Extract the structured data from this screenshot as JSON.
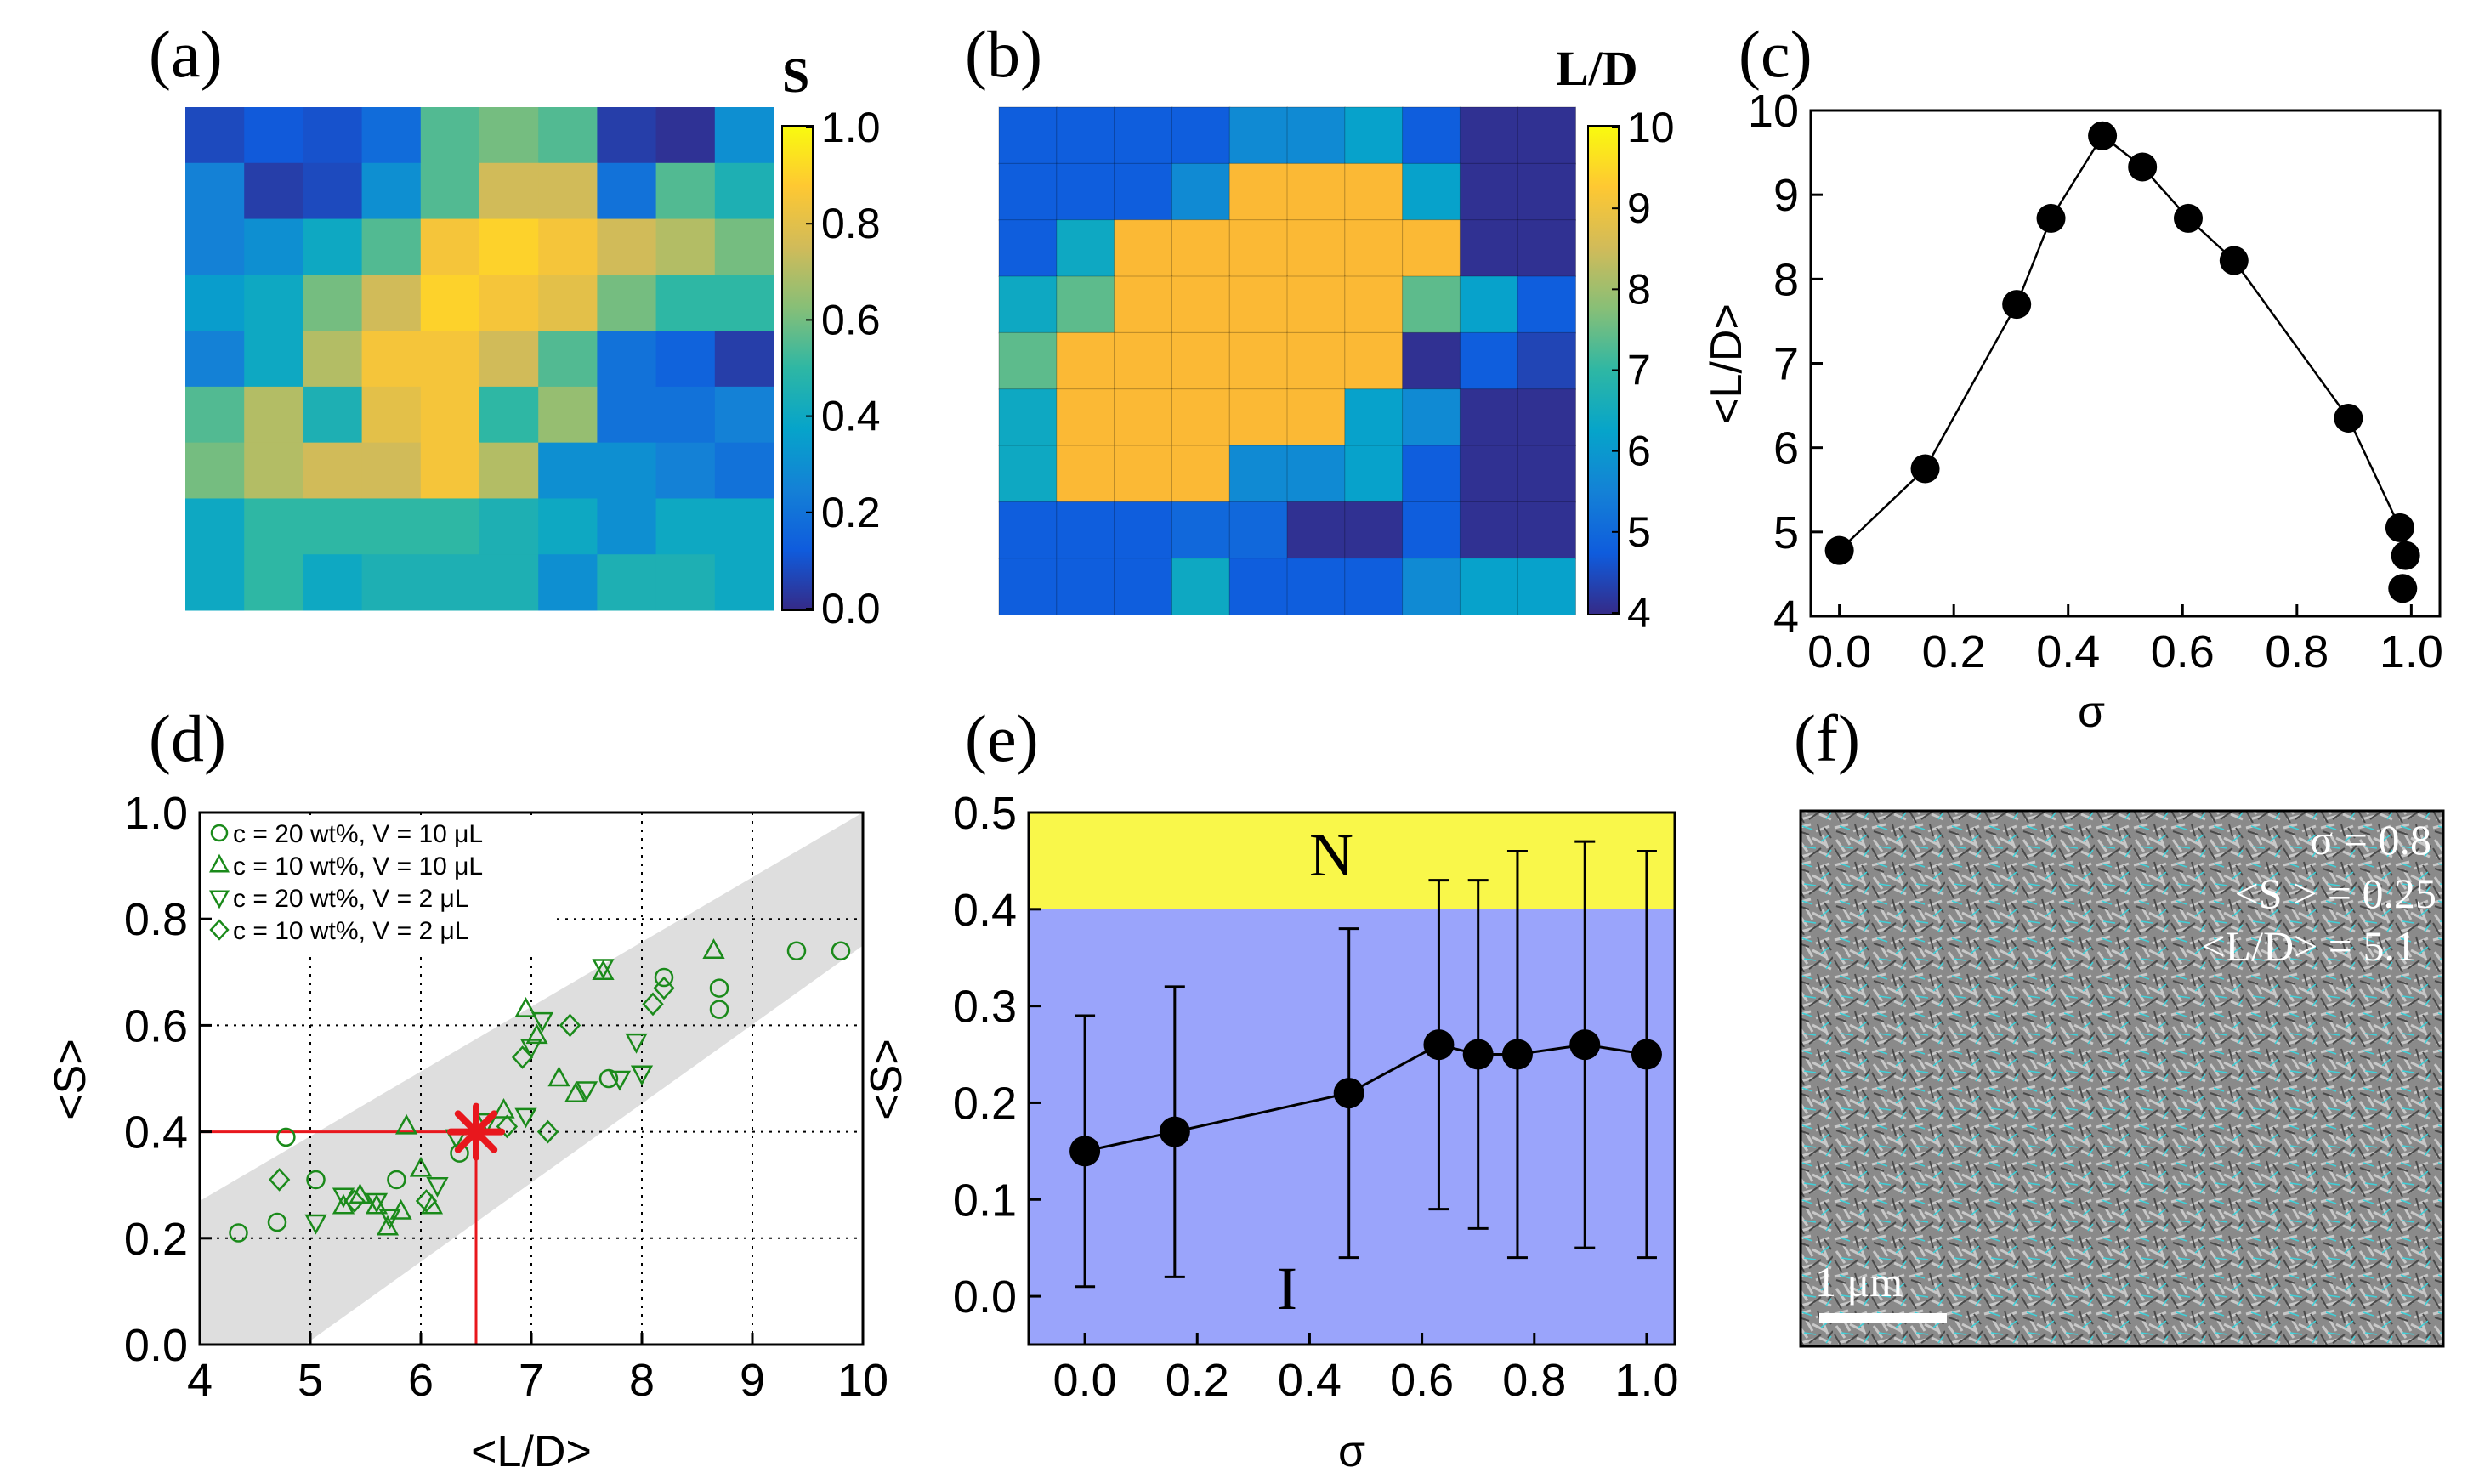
{
  "panel_labels": [
    "(a)",
    "(b)",
    "(c)",
    "(d)",
    "(e)",
    "(f)"
  ],
  "colors": {
    "parula_stops": [
      "#352a87",
      "#0f5cdd",
      "#1481d6",
      "#06a4ca",
      "#2eb7a4",
      "#87bf77",
      "#d1bb59",
      "#fec832",
      "#f9fb0e"
    ],
    "orange_cell": "#fbb935",
    "panel_d_marker": "#1a8a1a",
    "panel_d_band": "#dedede",
    "highlight_red": "#e8171d",
    "panel_e_nematic": "#f9f74a",
    "panel_e_isotropic": "#9aa4fb"
  },
  "chart_data": [
    {
      "panel": "a",
      "type": "heatmap",
      "colorbar_label": "S",
      "colorbar_ticks": [
        "0.0",
        "0.2",
        "0.4",
        "0.6",
        "0.8",
        "1.0"
      ],
      "vmin": 0,
      "vmax": 1,
      "values": [
        [
          0.08,
          0.12,
          0.1,
          0.18,
          0.55,
          0.6,
          0.55,
          0.05,
          0.02,
          0.3
        ],
        [
          0.25,
          0.05,
          0.08,
          0.3,
          0.55,
          0.75,
          0.75,
          0.2,
          0.55,
          0.45
        ],
        [
          0.25,
          0.3,
          0.4,
          0.55,
          0.85,
          0.9,
          0.85,
          0.75,
          0.7,
          0.6
        ],
        [
          0.35,
          0.4,
          0.6,
          0.75,
          0.9,
          0.85,
          0.8,
          0.6,
          0.5,
          0.5
        ],
        [
          0.25,
          0.4,
          0.7,
          0.85,
          0.85,
          0.75,
          0.55,
          0.2,
          0.15,
          0.05
        ],
        [
          0.55,
          0.7,
          0.45,
          0.8,
          0.85,
          0.5,
          0.65,
          0.2,
          0.2,
          0.25
        ],
        [
          0.6,
          0.7,
          0.75,
          0.75,
          0.85,
          0.7,
          0.3,
          0.3,
          0.25,
          0.2
        ],
        [
          0.4,
          0.5,
          0.5,
          0.5,
          0.5,
          0.45,
          0.4,
          0.3,
          0.4,
          0.4
        ],
        [
          0.4,
          0.5,
          0.4,
          0.45,
          0.45,
          0.45,
          0.3,
          0.45,
          0.45,
          0.4
        ]
      ]
    },
    {
      "panel": "b",
      "type": "heatmap",
      "colorbar_label": "L/D",
      "colorbar_ticks": [
        "4",
        "5",
        "6",
        "7",
        "8",
        "9",
        "10"
      ],
      "vmin": 4,
      "vmax": 10,
      "values": [
        [
          4.8,
          4.8,
          4.8,
          4.8,
          5.7,
          5.7,
          6.2,
          4.8,
          4.1,
          4.1
        ],
        [
          4.8,
          4.8,
          4.8,
          5.7,
          9.0,
          9.0,
          9.0,
          6.2,
          4.1,
          4.1
        ],
        [
          4.8,
          6.4,
          9.0,
          9.0,
          9.0,
          9.0,
          9.0,
          9.0,
          4.1,
          4.1
        ],
        [
          6.4,
          7.4,
          9.0,
          9.0,
          9.0,
          9.0,
          9.0,
          7.4,
          6.2,
          4.8
        ],
        [
          7.4,
          9.0,
          9.0,
          9.0,
          9.0,
          9.0,
          9.0,
          4.1,
          4.8,
          4.4
        ],
        [
          6.4,
          9.0,
          9.0,
          9.0,
          9.0,
          9.0,
          6.2,
          5.7,
          4.1,
          4.1
        ],
        [
          6.4,
          9.0,
          9.0,
          9.0,
          5.7,
          5.7,
          6.2,
          4.8,
          4.1,
          4.1
        ],
        [
          4.8,
          4.8,
          4.8,
          5.0,
          5.0,
          4.1,
          4.1,
          4.8,
          4.1,
          4.1
        ],
        [
          4.8,
          4.8,
          4.8,
          6.4,
          4.8,
          4.8,
          4.8,
          5.7,
          6.2,
          6.2
        ]
      ]
    },
    {
      "panel": "c",
      "type": "line",
      "xlabel": "σ",
      "ylabel": "<L/D>",
      "xlim": [
        -0.05,
        1.05
      ],
      "ylim": [
        4,
        10
      ],
      "xticks": [
        "0.0",
        "0.2",
        "0.4",
        "0.6",
        "0.8",
        "1.0"
      ],
      "yticks": [
        "4",
        "5",
        "6",
        "7",
        "8",
        "9",
        "10"
      ],
      "x": [
        0.0,
        0.15,
        0.31,
        0.37,
        0.46,
        0.53,
        0.61,
        0.69,
        0.89,
        0.98
      ],
      "y": [
        4.78,
        5.75,
        7.7,
        8.72,
        9.7,
        9.33,
        8.72,
        8.22,
        6.35,
        5.05
      ],
      "extra_points": [
        {
          "x": 0.99,
          "y": 4.72
        },
        {
          "x": 0.985,
          "y": 4.33
        }
      ]
    },
    {
      "panel": "d",
      "type": "scatter",
      "xlabel": "<L/D>",
      "ylabel": "<S>",
      "xlim": [
        4,
        10
      ],
      "ylim": [
        0,
        1
      ],
      "xticks": [
        "4",
        "5",
        "6",
        "7",
        "8",
        "9",
        "10"
      ],
      "yticks": [
        "0.0",
        "0.2",
        "0.4",
        "0.6",
        "0.8",
        "1.0"
      ],
      "band": {
        "lower": [
          [
            4.95,
            0.0
          ],
          [
            10.0,
            0.75
          ]
        ],
        "upper": [
          [
            4.0,
            0.27
          ],
          [
            10.0,
            1.0
          ]
        ]
      },
      "highlight": {
        "x": 6.5,
        "y": 0.4
      },
      "series": [
        {
          "name": "c = 20 wt%, V = 10 μL",
          "marker": "circle",
          "x": [
            4.35,
            4.7,
            4.78,
            5.05,
            5.78,
            6.35,
            7.7,
            8.2,
            8.7,
            8.7,
            9.4,
            9.8
          ],
          "y": [
            0.21,
            0.23,
            0.39,
            0.31,
            0.31,
            0.36,
            0.5,
            0.69,
            0.67,
            0.63,
            0.74,
            0.74
          ]
        },
        {
          "name": "c = 10 wt%, V = 10 μL",
          "marker": "triangle-up",
          "x": [
            5.3,
            5.45,
            5.6,
            5.7,
            5.82,
            5.87,
            6.0,
            6.1,
            6.75,
            6.95,
            7.05,
            7.25,
            7.4,
            7.65,
            8.65
          ],
          "y": [
            0.26,
            0.28,
            0.26,
            0.22,
            0.25,
            0.41,
            0.33,
            0.26,
            0.44,
            0.63,
            0.58,
            0.5,
            0.47,
            0.7,
            0.74
          ]
        },
        {
          "name": "c = 20 wt%, V = 2 μL",
          "marker": "triangle-down",
          "x": [
            5.05,
            5.3,
            5.6,
            5.72,
            6.15,
            6.32,
            6.6,
            6.95,
            7.0,
            7.1,
            7.5,
            7.65,
            7.8,
            7.95,
            8.0
          ],
          "y": [
            0.23,
            0.28,
            0.27,
            0.24,
            0.3,
            0.39,
            0.42,
            0.43,
            0.56,
            0.61,
            0.48,
            0.71,
            0.5,
            0.57,
            0.51
          ]
        },
        {
          "name": "c = 10 wt%, V = 2 μL",
          "marker": "diamond",
          "x": [
            4.72,
            5.4,
            6.05,
            6.78,
            6.92,
            7.15,
            7.35,
            8.1,
            8.2
          ],
          "y": [
            0.31,
            0.27,
            0.27,
            0.41,
            0.54,
            0.4,
            0.6,
            0.64,
            0.67
          ]
        }
      ]
    },
    {
      "panel": "e",
      "type": "line",
      "xlabel": "σ",
      "ylabel": "<S>",
      "xlim": [
        -0.1,
        1.05
      ],
      "ylim": [
        -0.05,
        0.5
      ],
      "xticks": [
        "0.0",
        "0.2",
        "0.4",
        "0.6",
        "0.8",
        "1.0"
      ],
      "yticks": [
        "0.0",
        "0.1",
        "0.2",
        "0.3",
        "0.4",
        "0.5"
      ],
      "region_labels": [
        "N",
        "I"
      ],
      "region_boundary": 0.4,
      "x": [
        0.0,
        0.16,
        0.47,
        0.63,
        0.7,
        0.77,
        0.89,
        1.0
      ],
      "y": [
        0.15,
        0.17,
        0.21,
        0.26,
        0.25,
        0.25,
        0.26,
        0.25
      ],
      "err_low": [
        0.01,
        0.02,
        0.04,
        0.09,
        0.07,
        0.04,
        0.05,
        0.04
      ],
      "err_high": [
        0.29,
        0.32,
        0.38,
        0.43,
        0.43,
        0.46,
        0.47,
        0.46
      ]
    }
  ],
  "panel_f": {
    "annotations": [
      "σ     =  0.8",
      "<S > = 0.25",
      "<L/D> = 5.1"
    ],
    "scale_bar": "1 μm",
    "image_description_name": "sem-micrograph"
  }
}
